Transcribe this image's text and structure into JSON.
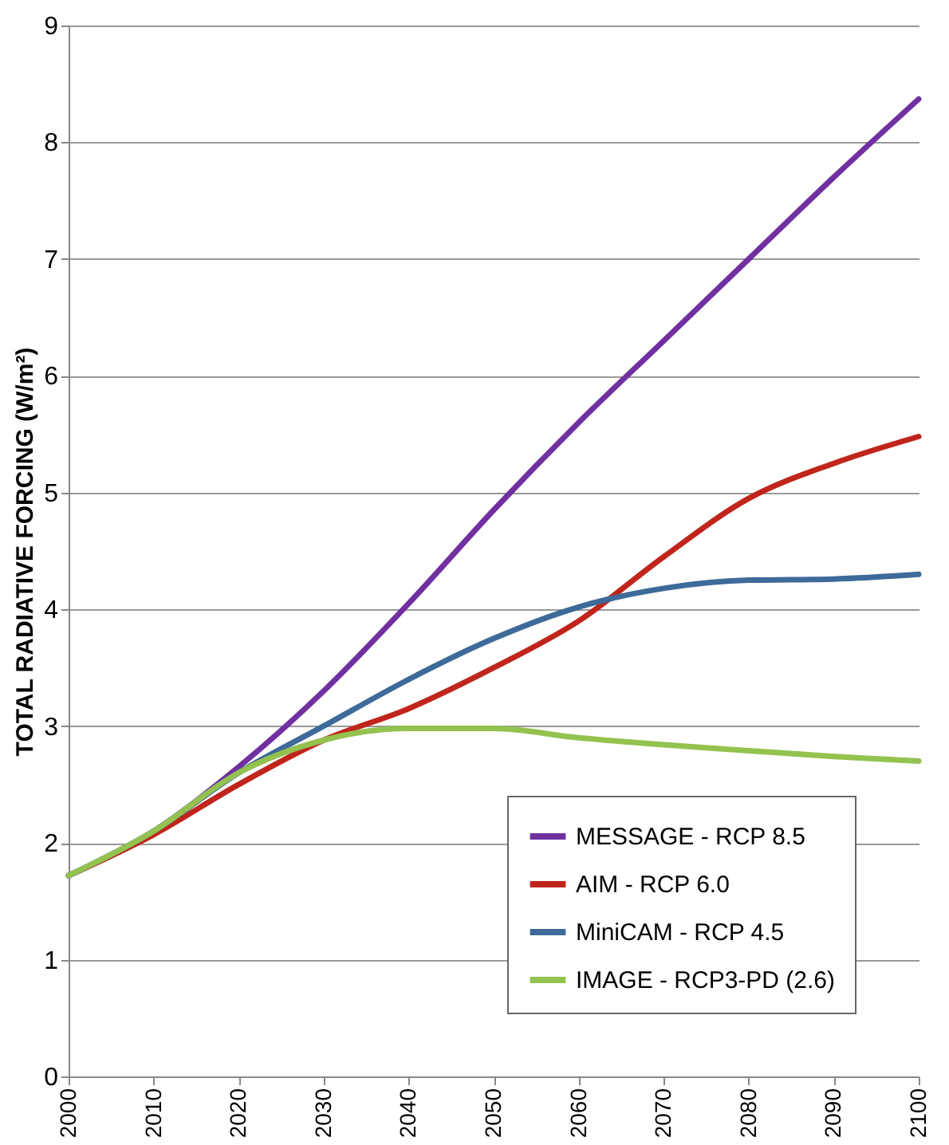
{
  "chart_data": {
    "type": "line",
    "ylabel": "TOTAL RADIATIVE FORCING (W/m²)",
    "x": [
      2000,
      2010,
      2020,
      2030,
      2040,
      2050,
      2060,
      2070,
      2080,
      2090,
      2100
    ],
    "series": [
      {
        "name": "MESSAGE - RCP 8.5",
        "color": "#7030a0",
        "values": [
          1.72,
          2.1,
          2.65,
          3.3,
          4.05,
          4.85,
          5.6,
          6.3,
          7.0,
          7.7,
          8.37
        ]
      },
      {
        "name": "AIM - RCP 6.0",
        "color": "#c0251b",
        "values": [
          1.72,
          2.07,
          2.5,
          2.88,
          3.15,
          3.5,
          3.9,
          4.45,
          4.95,
          5.25,
          5.48
        ]
      },
      {
        "name": "MiniCAM - RCP 4.5",
        "color": "#3d6a99",
        "values": [
          1.72,
          2.1,
          2.6,
          3.0,
          3.4,
          3.75,
          4.02,
          4.18,
          4.25,
          4.26,
          4.3
        ]
      },
      {
        "name": "IMAGE - RCP3-PD (2.6)",
        "color": "#93c24f",
        "values": [
          1.72,
          2.1,
          2.6,
          2.88,
          2.98,
          2.98,
          2.9,
          2.84,
          2.79,
          2.74,
          2.7
        ]
      }
    ],
    "xlim": [
      2000,
      2100
    ],
    "xticks": [
      2000,
      2010,
      2020,
      2030,
      2040,
      2050,
      2060,
      2070,
      2080,
      2090,
      2100
    ],
    "ylim": [
      0,
      9
    ],
    "yticks": [
      0,
      1,
      2,
      3,
      4,
      5,
      6,
      7,
      8,
      9
    ],
    "grid": "y",
    "legend": "bottom right",
    "marker": "none",
    "line_style": "solid"
  }
}
